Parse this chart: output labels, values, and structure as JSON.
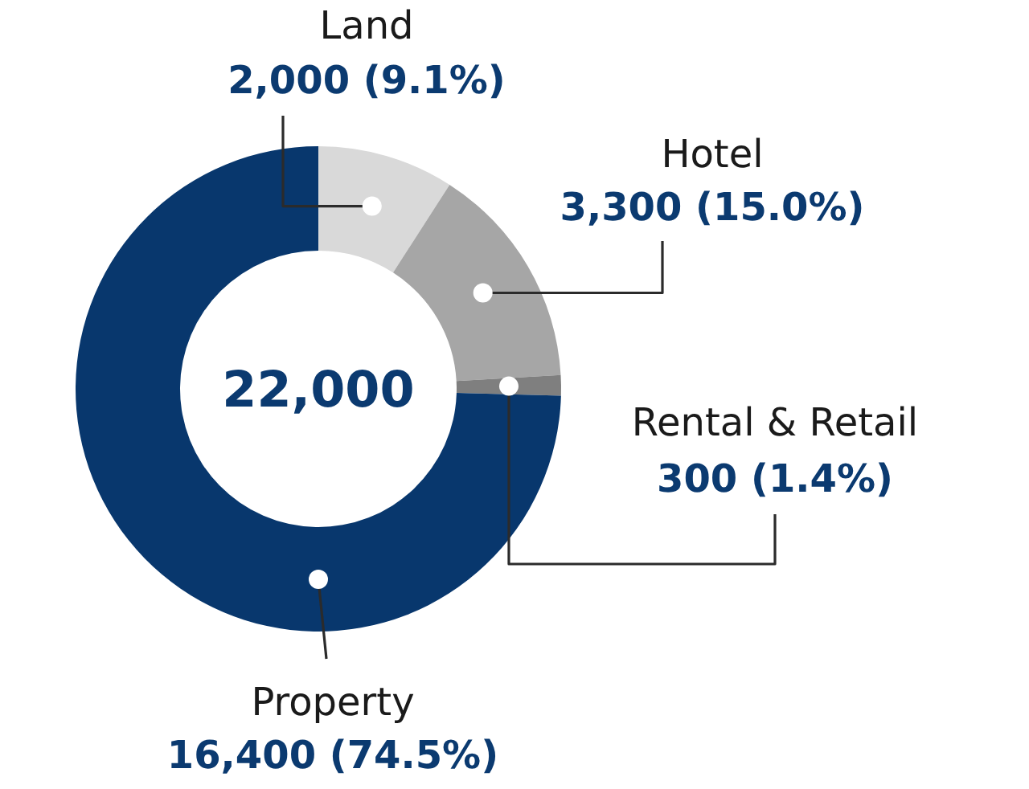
{
  "chart_data": {
    "type": "donut",
    "categories": [
      "Land",
      "Hotel",
      "Rental & Retail",
      "Property"
    ],
    "values": [
      2000,
      3300,
      300,
      16400
    ],
    "colors": [
      "#d9d9d9",
      "#a6a6a6",
      "#7f7f7f",
      "#08376d"
    ],
    "value_labels": [
      "2,000 (9.1%)",
      "3,300 (15.0%)",
      "300 (1.4%)",
      "16,400 (74.5%)"
    ],
    "annotations": [
      "22,000"
    ]
  }
}
